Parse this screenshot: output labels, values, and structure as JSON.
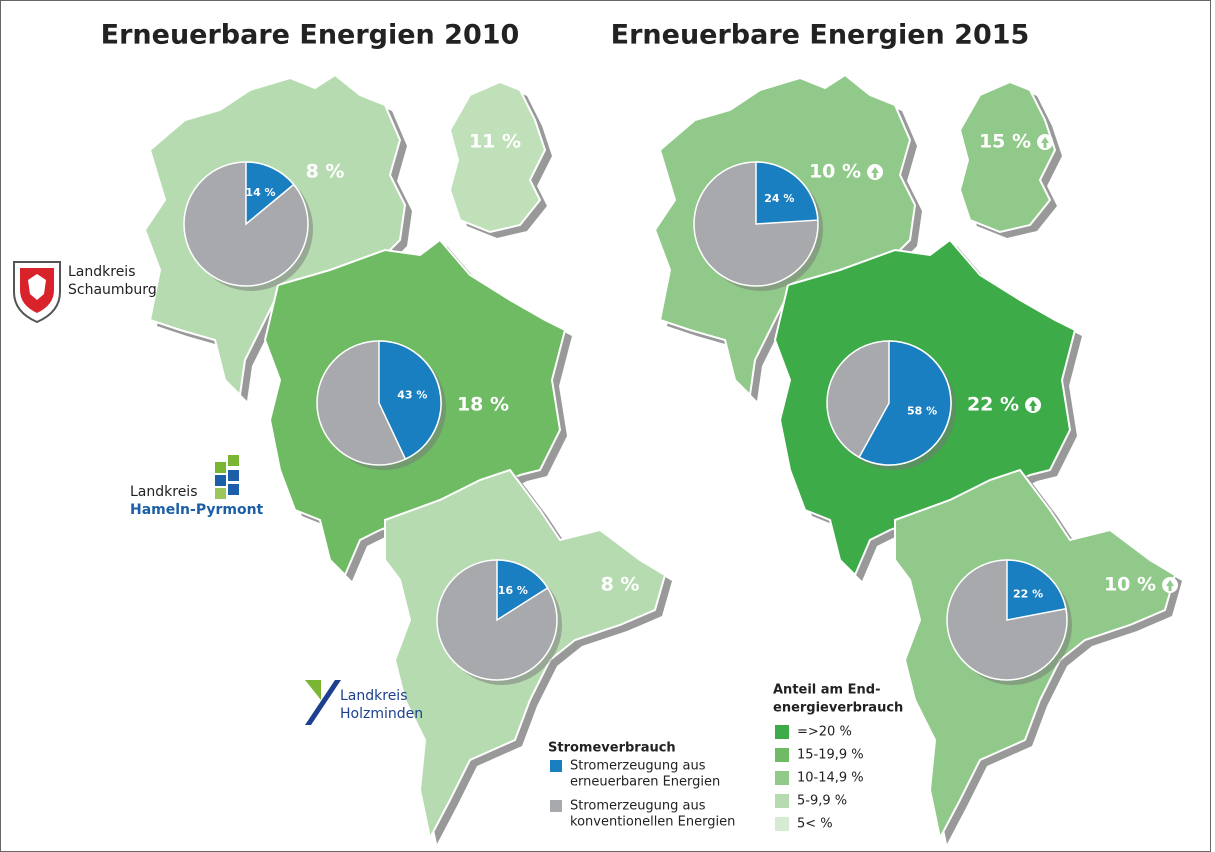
{
  "panels": [
    {
      "title": "Erneuerbare Energien 2010",
      "regions": [
        {
          "share": {
            "value": 8,
            "label": "8 %"
          },
          "color": "#b7dbb1",
          "pie": {
            "value": 14,
            "label": "14 %"
          }
        },
        {
          "share": {
            "value": 11,
            "label": "11 %"
          },
          "color": "#bfe0b9"
        },
        {
          "share": {
            "value": 18,
            "label": "18 %"
          },
          "color": "#6fbb64",
          "pie": {
            "value": 43,
            "label": "43 %"
          }
        },
        {
          "share": {
            "value": 8,
            "label": "8 %"
          },
          "color": "#b7dbb1",
          "pie": {
            "value": 16,
            "label": "16 %"
          }
        }
      ]
    },
    {
      "title": "Erneuerbare Energien 2015",
      "regions": [
        {
          "share": {
            "value": 10,
            "label": "10 %"
          },
          "color": "#91c98a",
          "trend": "up",
          "pie": {
            "value": 24,
            "label": "24 %"
          }
        },
        {
          "share": {
            "value": 15,
            "label": "15 %"
          },
          "color": "#91c98a",
          "trend": "up"
        },
        {
          "share": {
            "value": 22,
            "label": "22 %"
          },
          "color": "#3dab48",
          "trend": "up",
          "pie": {
            "value": 58,
            "label": "58 %"
          }
        },
        {
          "share": {
            "value": 10,
            "label": "10 %"
          },
          "color": "#91c98a",
          "trend": "up",
          "pie": {
            "value": 22,
            "label": "22 %"
          }
        }
      ]
    }
  ],
  "logos": [
    {
      "lines": [
        "Landkreis",
        "Schaumburg"
      ]
    },
    {
      "lines": [
        "Landkreis",
        "Hameln-Pyrmont"
      ]
    },
    {
      "lines": [
        "Landkreis",
        "Holzminden"
      ]
    }
  ],
  "pie_legend": {
    "title": "Stromeverbrauch",
    "items": [
      {
        "lines": [
          "Stromerzeugung aus",
          "erneuerbaren Energien"
        ],
        "color": "#1a7fc1"
      },
      {
        "lines": [
          "Stromerzeugung aus",
          "konventionellen Energien"
        ],
        "color": "#a8a9ad"
      }
    ]
  },
  "share_legend": {
    "title": [
      "Anteil am End-",
      "energieverbrauch"
    ],
    "items": [
      {
        "label": "=>20 %",
        "color": "#3dab48"
      },
      {
        "label": "15-19,9 %",
        "color": "#6fbb64"
      },
      {
        "label": "10-14,9 %",
        "color": "#91c98a"
      },
      {
        "label": "5-9,9 %",
        "color": "#b7dbb1"
      },
      {
        "label": "5< %",
        "color": "#d6ecd2"
      }
    ]
  }
}
